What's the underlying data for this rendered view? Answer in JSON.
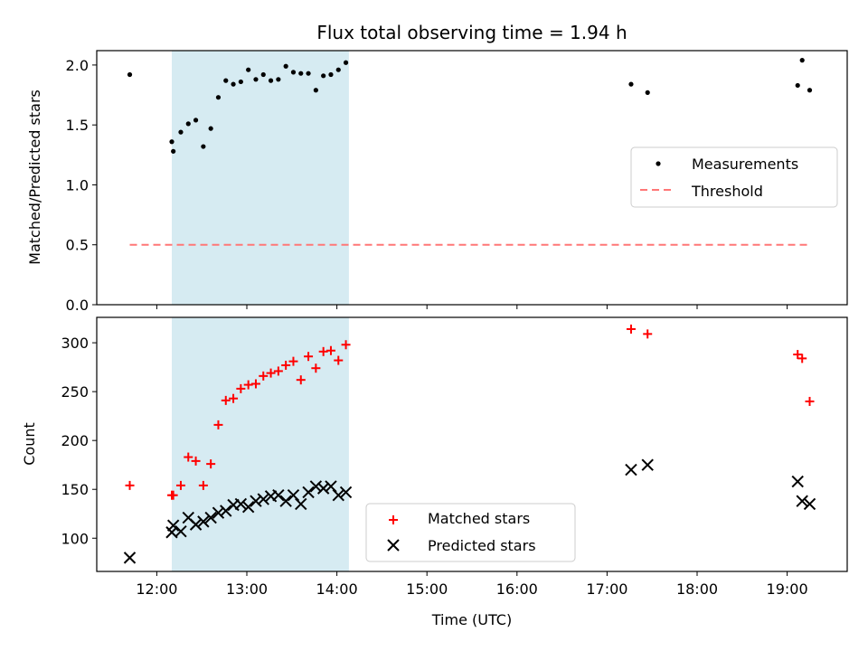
{
  "chart_data": [
    {
      "type": "scatter",
      "title": "Flux total observing time = 1.94 h",
      "ylabel": "Matched/Predicted stars",
      "xlim": [
        "11:20",
        "19:40"
      ],
      "ylim": [
        0,
        2.12
      ],
      "y_ticks": [
        0.0,
        0.5,
        1.0,
        1.5,
        2.0
      ],
      "y_tick_labels": [
        "0.0",
        "0.5",
        "1.0",
        "1.5",
        "2.0"
      ],
      "shaded_region": {
        "start": "12:10",
        "end": "14:08",
        "color": "#add8e6"
      },
      "legend_position": "center-right",
      "series": [
        {
          "name": "Measurements",
          "marker": "dot",
          "color": "#000000",
          "x": [
            "11:42",
            "12:10",
            "12:11",
            "12:16",
            "12:21",
            "12:26",
            "12:31",
            "12:36",
            "12:41",
            "12:46",
            "12:51",
            "12:56",
            "13:01",
            "13:06",
            "13:11",
            "13:16",
            "13:21",
            "13:26",
            "13:31",
            "13:36",
            "13:41",
            "13:46",
            "13:51",
            "13:56",
            "14:01",
            "14:06",
            "17:16",
            "17:27",
            "19:07",
            "19:10",
            "19:15"
          ],
          "y": [
            1.92,
            1.36,
            1.28,
            1.44,
            1.51,
            1.54,
            1.32,
            1.47,
            1.73,
            1.87,
            1.84,
            1.86,
            1.96,
            1.88,
            1.92,
            1.87,
            1.88,
            1.99,
            1.94,
            1.93,
            1.93,
            1.79,
            1.91,
            1.92,
            1.96,
            2.02,
            1.84,
            1.77,
            1.83,
            2.04,
            1.79
          ]
        },
        {
          "name": "Threshold",
          "marker": "dashed-line",
          "color": "#ff7777",
          "x": [
            "11:42",
            "19:15"
          ],
          "y": [
            0.5,
            0.5
          ]
        }
      ]
    },
    {
      "type": "scatter",
      "xlabel": "Time (UTC)",
      "ylabel": "Count",
      "xlim": [
        "11:20",
        "19:40"
      ],
      "ylim": [
        66,
        326
      ],
      "x_ticks": [
        "12:00",
        "13:00",
        "14:00",
        "15:00",
        "16:00",
        "17:00",
        "18:00",
        "19:00"
      ],
      "y_ticks": [
        100,
        150,
        200,
        250,
        300
      ],
      "y_tick_labels": [
        "100",
        "150",
        "200",
        "250",
        "300"
      ],
      "shaded_region": {
        "start": "12:10",
        "end": "14:08",
        "color": "#add8e6"
      },
      "legend_position": "bottom-center",
      "series": [
        {
          "name": "Matched stars",
          "marker": "plus",
          "color": "#ff0000",
          "x": [
            "11:42",
            "12:10",
            "12:11",
            "12:16",
            "12:21",
            "12:26",
            "12:31",
            "12:36",
            "12:41",
            "12:46",
            "12:51",
            "12:56",
            "13:01",
            "13:06",
            "13:11",
            "13:16",
            "13:21",
            "13:26",
            "13:31",
            "13:36",
            "13:41",
            "13:46",
            "13:51",
            "13:56",
            "14:01",
            "14:06",
            "17:16",
            "17:27",
            "19:07",
            "19:10",
            "19:15"
          ],
          "y": [
            154,
            144,
            144,
            154,
            183,
            179,
            154,
            176,
            216,
            241,
            243,
            253,
            257,
            258,
            266,
            269,
            271,
            277,
            281,
            262,
            286,
            274,
            291,
            292,
            282,
            298,
            314,
            309,
            288,
            284,
            240
          ]
        },
        {
          "name": "Predicted stars",
          "marker": "x",
          "color": "#000000",
          "x": [
            "11:42",
            "12:10",
            "12:11",
            "12:16",
            "12:21",
            "12:26",
            "12:31",
            "12:36",
            "12:41",
            "12:46",
            "12:51",
            "12:56",
            "13:01",
            "13:06",
            "13:11",
            "13:16",
            "13:21",
            "13:26",
            "13:31",
            "13:36",
            "13:41",
            "13:46",
            "13:51",
            "13:56",
            "14:01",
            "14:06",
            "17:16",
            "17:27",
            "19:07",
            "19:10",
            "19:15"
          ],
          "y": [
            80,
            106,
            113,
            107,
            121,
            114,
            117,
            121,
            126,
            128,
            134,
            135,
            132,
            138,
            140,
            143,
            144,
            138,
            144,
            135,
            147,
            153,
            151,
            153,
            144,
            147,
            170,
            175,
            158,
            138,
            135
          ]
        }
      ]
    }
  ]
}
